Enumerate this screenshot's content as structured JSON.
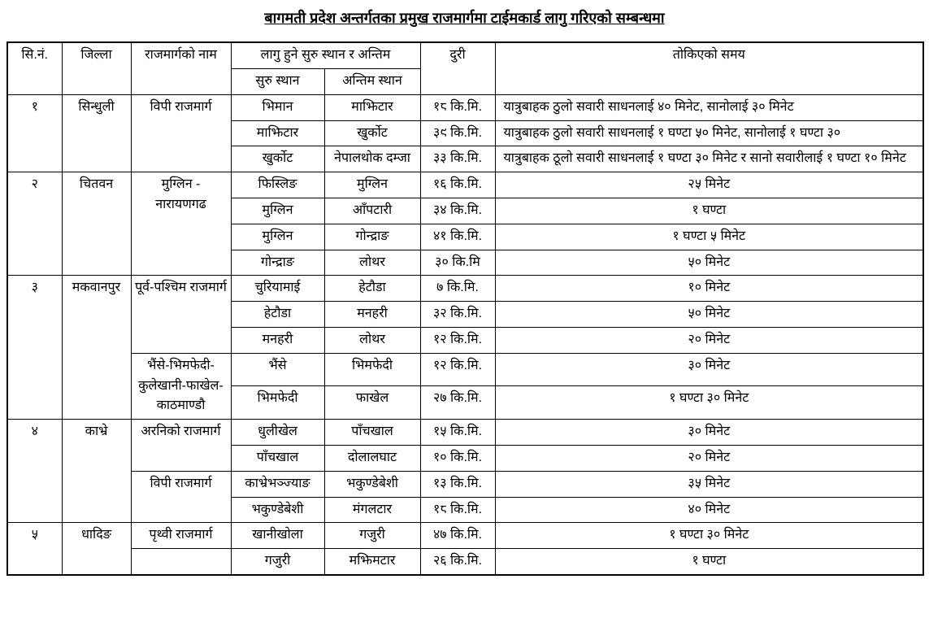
{
  "title": "बागमती प्रदेश अन्तर्गतका प्रमुख राजमार्गमा टाईमकार्ड लागु गरिएको सम्बन्धमा",
  "table": {
    "headers": {
      "sn": "सि.नं.",
      "district": "जिल्ला",
      "highway": "राजमार्गको नाम",
      "places_group": "लागु हुने सुरु स्थान र अन्तिम",
      "start": "सुरु स्थान",
      "end": "अन्तिम स्थान",
      "distance": "दुरी",
      "time": "तोकिएको समय"
    },
    "groups": [
      {
        "sn": "१",
        "district": "सिन्धुली",
        "highways": [
          {
            "name": "विपी राजमार्ग",
            "segments": [
              {
                "start": "भिमान",
                "end": "माझिटार",
                "distance": "१८ कि.मि.",
                "time": "यात्रुबाहक ठुलो सवारी साधनलाई ४० मिनेट, सानोलाई ३० मिनेट"
              },
              {
                "start": "माझिटार",
                "end": "खुर्कोट",
                "distance": "३९ कि.मि.",
                "time": "यात्रुबाहक ठुलो सवारी साधनलाई १ घण्टा ५० मिनेट, सानोलाई १ घण्टा ३०"
              },
              {
                "start": "खुर्कोट",
                "end": "नेपालथोक दम्जा",
                "distance": "३३ कि.मि.",
                "time": "यात्रुबाहक ठूलो सवारी साधनलाई १ घण्टा ३० मिनेट र सानो सवारीलाई १ घण्टा १० मिनेट"
              }
            ]
          }
        ]
      },
      {
        "sn": "२",
        "district": "चितवन",
        "highways": [
          {
            "name": "मुग्लिन - नारायणगढ",
            "segments": [
              {
                "start": "फिस्लिङ",
                "end": "मुग्लिन",
                "distance": "१६ कि.मि.",
                "time": "२५ मिनेट"
              },
              {
                "start": "मुग्लिन",
                "end": "आँपटारी",
                "distance": "३४ कि.मि.",
                "time": "१ घण्टा"
              },
              {
                "start": "मुग्लिन",
                "end": "गोन्द्राङ",
                "distance": "४१ कि.मि.",
                "time": "१ घण्टा ५ मिनेट"
              },
              {
                "start": "गोन्द्राङ",
                "end": "लोथर",
                "distance": "३० कि.मि",
                "time": "५० मिनेट"
              }
            ]
          }
        ]
      },
      {
        "sn": "३",
        "district": "मकवानपुर",
        "highways": [
          {
            "name": "पूर्व-पश्चिम राजमार्ग",
            "segments": [
              {
                "start": "चुरियामाई",
                "end": "हेटौडा",
                "distance": "७ कि.मि.",
                "time": "१० मिनेट"
              },
              {
                "start": "हेटौडा",
                "end": "मनहरी",
                "distance": "३२ कि.मि.",
                "time": "५० मिनेट"
              },
              {
                "start": "मनहरी",
                "end": "लोथर",
                "distance": "१२ कि.मि.",
                "time": "२० मिनेट"
              }
            ]
          },
          {
            "name": "भैंसे-भिमफेदी-कुलेखानी-फाखेल-काठमाण्डौ",
            "segments": [
              {
                "start": "भैंसे",
                "end": "भिमफेदी",
                "distance": "१२ कि.मि.",
                "time": "३० मिनेट"
              },
              {
                "start": "भिमफेदी",
                "end": "फाखेल",
                "distance": "२७ कि.मि.",
                "time": "१ घण्टा ३० मिनेट"
              }
            ]
          }
        ]
      },
      {
        "sn": "४",
        "district": "काभ्रे",
        "highways": [
          {
            "name": "अरनिको राजमार्ग",
            "segments": [
              {
                "start": "धुलीखेल",
                "end": "पाँचखाल",
                "distance": "१५ कि.मि.",
                "time": "३० मिनेट"
              },
              {
                "start": "पाँचखाल",
                "end": "दोलालघाट",
                "distance": "१० कि.मि.",
                "time": "२० मिनेट"
              }
            ]
          },
          {
            "name": "विपी राजमार्ग",
            "segments": [
              {
                "start": "काभ्रेभञ्ज्याङ",
                "end": "भकुण्डेबेशी",
                "distance": "१३ कि.मि.",
                "time": "३५ मिनेट"
              },
              {
                "start": "भकुण्डेबेशी",
                "end": "मंगलटार",
                "distance": "१८ कि.मि.",
                "time": "४० मिनेट"
              }
            ]
          }
        ]
      },
      {
        "sn": "५",
        "district": "धादिङ",
        "highways": [
          {
            "name": "पृथ्वी राजमार्ग",
            "segments": [
              {
                "start": "खानीखोला",
                "end": "गजुरी",
                "distance": "४७ कि.मि.",
                "time": "१ घण्टा ३० मिनेट"
              }
            ]
          },
          {
            "name": "",
            "segments": [
              {
                "start": "गजुरी",
                "end": "मझिमटार",
                "distance": "२६ कि.मि.",
                "time": "१ घण्टा"
              }
            ]
          }
        ]
      }
    ]
  }
}
